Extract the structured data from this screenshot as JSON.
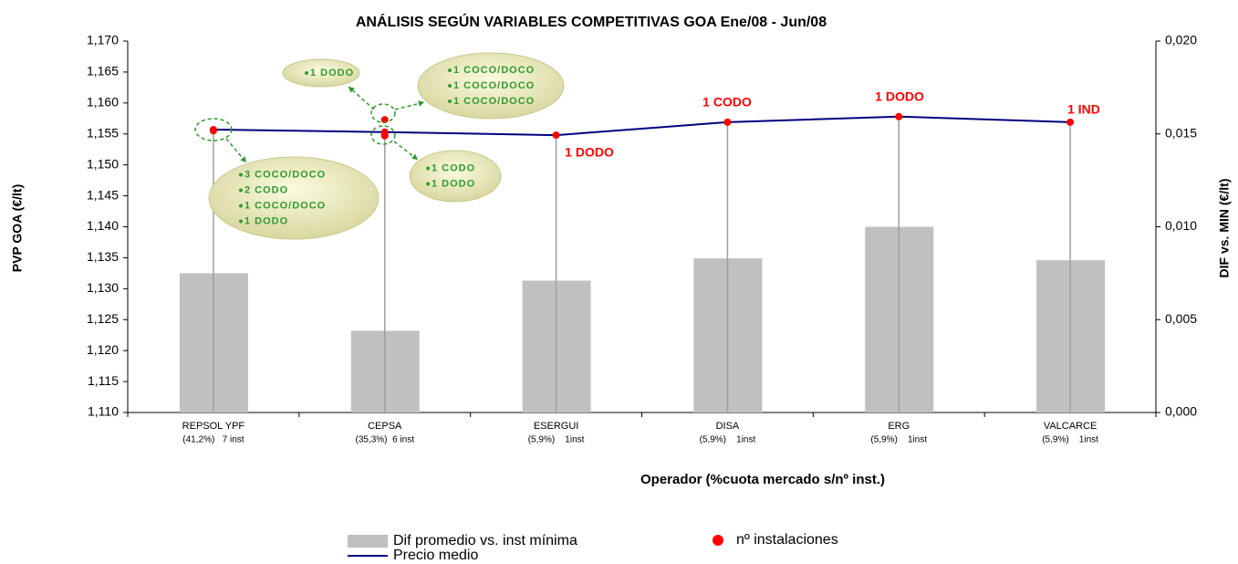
{
  "chart_data": {
    "type": "bar-line-dot",
    "title": "ANÁLISIS SEGÚN VARIABLES COMPETITIVAS GOA Ene/08 - Jun/08",
    "ylabel": "PVP GOA (€/lt)",
    "y2label": "DIF vs. MIN (€/lt)",
    "xlabel": "Operador (%cuota mercado s/nº inst.)",
    "categories": [
      "REPSOL YPF",
      "CEPSA",
      "ESERGUI",
      "DISA",
      "ERG",
      "VALCARCE"
    ],
    "category_notes": [
      "(41,2%)   7 inst",
      "(35,3%)  6 inst",
      "(5,9%)    1inst",
      "(5,9%)    1inst",
      "(5,9%)    1inst",
      "(5,9%)    1inst"
    ],
    "ylim": [
      1.11,
      1.17
    ],
    "yticks": [
      {
        "value": 1.11,
        "label": "1,110"
      },
      {
        "value": 1.115,
        "label": "1,115"
      },
      {
        "value": 1.12,
        "label": "1,120"
      },
      {
        "value": 1.125,
        "label": "1,125"
      },
      {
        "value": 1.13,
        "label": "1,130"
      },
      {
        "value": 1.135,
        "label": "1,135"
      },
      {
        "value": 1.14,
        "label": "1,140"
      },
      {
        "value": 1.145,
        "label": "1,145"
      },
      {
        "value": 1.15,
        "label": "1,150"
      },
      {
        "value": 1.155,
        "label": "1,155"
      },
      {
        "value": 1.16,
        "label": "1,160"
      },
      {
        "value": 1.165,
        "label": "1,165"
      },
      {
        "value": 1.17,
        "label": "1,170"
      }
    ],
    "y2lim": [
      0,
      0.02
    ],
    "y2ticks": [
      {
        "value": 0,
        "label": "0,000"
      },
      {
        "value": 0.005,
        "label": "0,005"
      },
      {
        "value": 0.01,
        "label": "0,010"
      },
      {
        "value": 0.015,
        "label": "0,015"
      },
      {
        "value": 0.02,
        "label": "0,020"
      }
    ],
    "series": [
      {
        "name": "Dif promedio vs. inst mínima",
        "kind": "bar",
        "axis": "y2",
        "color": "#c0c0c0",
        "values": [
          0.0075,
          0.0044,
          0.0071,
          0.0083,
          0.01,
          0.0082
        ]
      },
      {
        "name": "Precio medio",
        "kind": "line",
        "color": "#000080",
        "values": [
          1.1557,
          1.1553,
          1.1548,
          1.1569,
          1.1578,
          1.1569
        ]
      },
      {
        "name": "nº instalaciones",
        "kind": "dot",
        "color": "#ff0000",
        "values": [
          [
            1.1557,
            1.1555
          ],
          [
            1.1573,
            1.1553,
            1.1549,
            1.1547
          ],
          [
            1.1548
          ],
          [
            1.1569
          ],
          [
            1.1578
          ],
          [
            1.1569
          ]
        ]
      }
    ],
    "annotations": [
      "1 DODO",
      "1 CODO",
      "1 DODO",
      "1 IND"
    ],
    "callouts": [
      {
        "lines": [
          "1 DODO"
        ]
      },
      {
        "lines": [
          "1 COCO/DOCO",
          "1 COCO/DOCO",
          "1 COCO/DOCO"
        ]
      },
      {
        "lines": [
          "3 COCO/DOCO",
          "2 CODO",
          "1 COCO/DOCO",
          "1 DODO"
        ]
      },
      {
        "lines": [
          "1 CODO",
          "1 DODO"
        ]
      }
    ],
    "legend": "bottom"
  }
}
